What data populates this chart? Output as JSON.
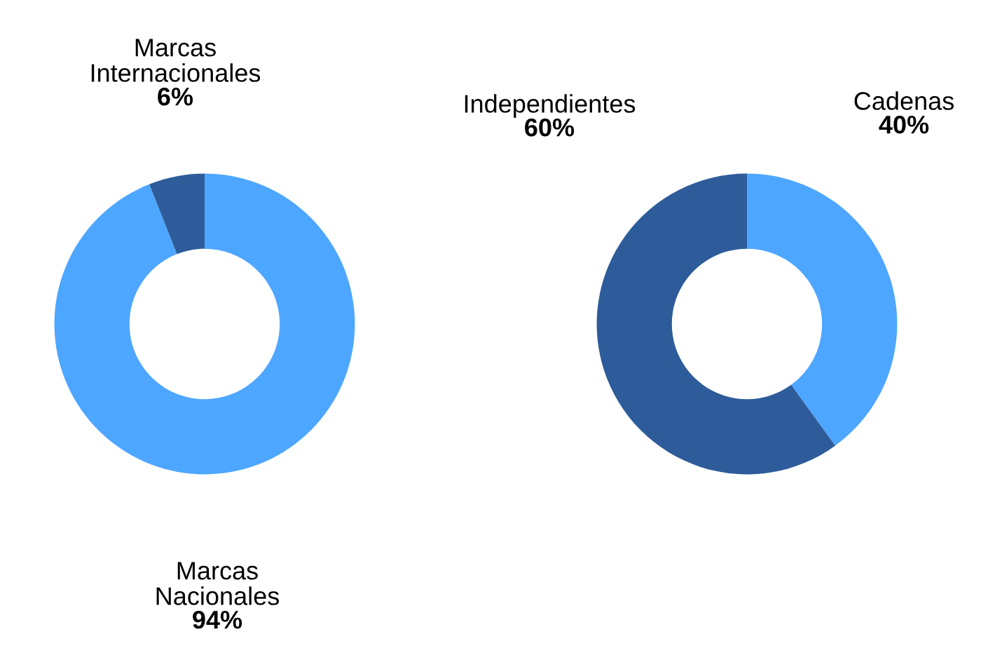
{
  "chart_data": [
    {
      "type": "donut",
      "categories": [
        "Marcas\nNacionales",
        "Marcas\nInternacionales"
      ],
      "values": [
        94,
        6
      ],
      "value_labels": [
        "94%",
        "6%"
      ],
      "colors": [
        "#4da6ff",
        "#2e5c9a"
      ]
    },
    {
      "type": "donut",
      "categories": [
        "Cadenas",
        "Independientes"
      ],
      "values": [
        40,
        60
      ],
      "value_labels": [
        "40%",
        "60%"
      ],
      "colors": [
        "#4da6ff",
        "#2e5c9a"
      ]
    }
  ]
}
